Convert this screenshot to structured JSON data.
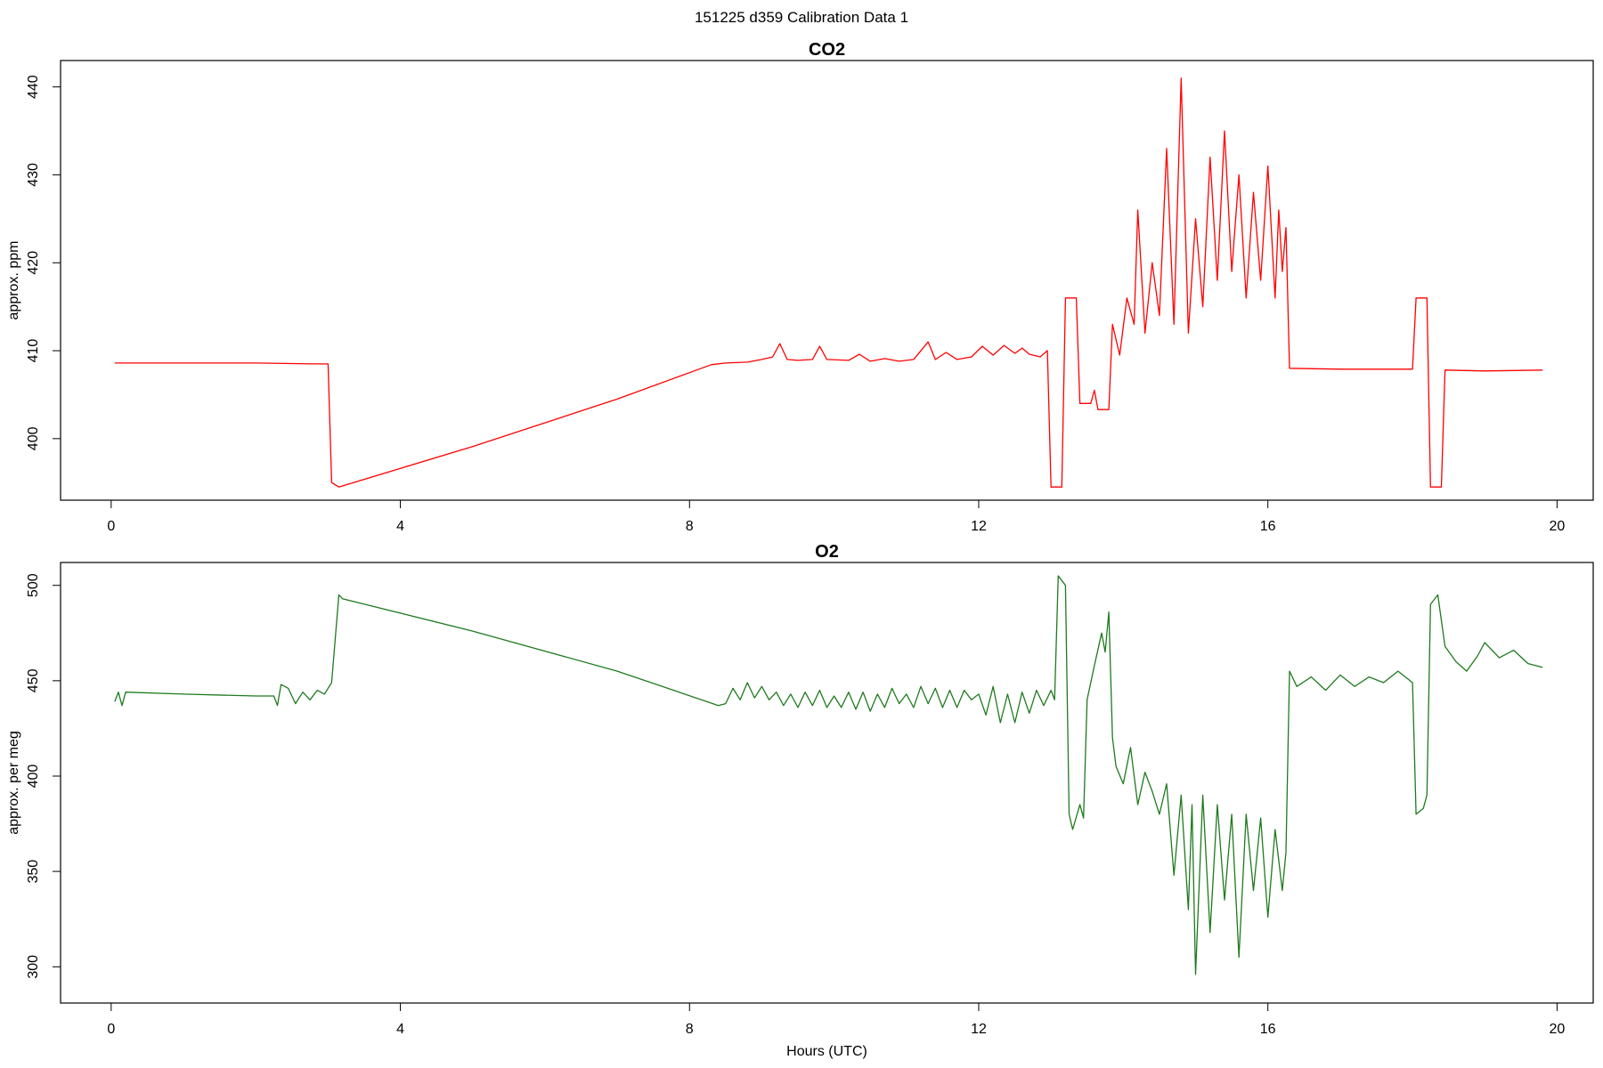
{
  "figure": {
    "title": "151225   d359   Calibration Data 1"
  },
  "chart_data": [
    {
      "type": "line",
      "title": "CO2",
      "xlabel": "",
      "ylabel": "approx. ppm",
      "xlim": [
        -0.7,
        20.5
      ],
      "ylim": [
        393,
        443
      ],
      "xticks": [
        0,
        4,
        8,
        12,
        16,
        20
      ],
      "yticks": [
        400,
        410,
        420,
        430,
        440
      ],
      "grid": false,
      "color": "#ff0000",
      "series": [
        {
          "values": [
            [
              0.05,
              408.6
            ],
            [
              1.0,
              408.6
            ],
            [
              2.0,
              408.6
            ],
            [
              2.8,
              408.5
            ],
            [
              3.0,
              408.5
            ],
            [
              3.05,
              395.0
            ],
            [
              3.15,
              394.5
            ],
            [
              5.0,
              399.1
            ],
            [
              7.0,
              404.5
            ],
            [
              8.3,
              408.4
            ],
            [
              8.5,
              408.6
            ],
            [
              8.8,
              408.7
            ],
            [
              9.0,
              409.0
            ],
            [
              9.15,
              409.3
            ],
            [
              9.25,
              410.8
            ],
            [
              9.35,
              409.0
            ],
            [
              9.5,
              408.9
            ],
            [
              9.7,
              409.0
            ],
            [
              9.8,
              410.5
            ],
            [
              9.9,
              409.0
            ],
            [
              10.2,
              408.9
            ],
            [
              10.35,
              409.6
            ],
            [
              10.5,
              408.8
            ],
            [
              10.7,
              409.1
            ],
            [
              10.9,
              408.8
            ],
            [
              11.1,
              409.0
            ],
            [
              11.3,
              411.0
            ],
            [
              11.4,
              409.0
            ],
            [
              11.55,
              409.8
            ],
            [
              11.7,
              409.0
            ],
            [
              11.9,
              409.3
            ],
            [
              12.05,
              410.5
            ],
            [
              12.2,
              409.5
            ],
            [
              12.35,
              410.6
            ],
            [
              12.5,
              409.7
            ],
            [
              12.6,
              410.3
            ],
            [
              12.7,
              409.6
            ],
            [
              12.85,
              409.3
            ],
            [
              12.95,
              410.0
            ],
            [
              13.0,
              394.5
            ],
            [
              13.15,
              394.5
            ],
            [
              13.2,
              416.0
            ],
            [
              13.35,
              416.0
            ],
            [
              13.4,
              404.0
            ],
            [
              13.55,
              404.0
            ],
            [
              13.6,
              405.5
            ],
            [
              13.65,
              403.3
            ],
            [
              13.8,
              403.3
            ],
            [
              13.85,
              413.0
            ],
            [
              13.95,
              409.5
            ],
            [
              14.05,
              416.0
            ],
            [
              14.15,
              413.0
            ],
            [
              14.2,
              426.0
            ],
            [
              14.3,
              412.0
            ],
            [
              14.4,
              420.0
            ],
            [
              14.5,
              414.0
            ],
            [
              14.6,
              433.0
            ],
            [
              14.7,
              413.0
            ],
            [
              14.8,
              441.0
            ],
            [
              14.9,
              412.0
            ],
            [
              15.0,
              425.0
            ],
            [
              15.1,
              415.0
            ],
            [
              15.2,
              432.0
            ],
            [
              15.3,
              418.0
            ],
            [
              15.4,
              435.0
            ],
            [
              15.5,
              419.0
            ],
            [
              15.6,
              430.0
            ],
            [
              15.7,
              416.0
            ],
            [
              15.8,
              428.0
            ],
            [
              15.9,
              418.0
            ],
            [
              16.0,
              431.0
            ],
            [
              16.1,
              416.0
            ],
            [
              16.15,
              426.0
            ],
            [
              16.2,
              419.0
            ],
            [
              16.25,
              424.0
            ],
            [
              16.3,
              408.0
            ],
            [
              17.0,
              407.9
            ],
            [
              18.0,
              407.9
            ],
            [
              18.05,
              416.0
            ],
            [
              18.2,
              416.0
            ],
            [
              18.25,
              394.5
            ],
            [
              18.4,
              394.5
            ],
            [
              18.45,
              407.8
            ],
            [
              19.0,
              407.7
            ],
            [
              19.8,
              407.8
            ]
          ]
        }
      ]
    },
    {
      "type": "line",
      "title": "O2",
      "xlabel": "Hours (UTC)",
      "ylabel": "approx. per meg",
      "xlim": [
        -0.7,
        20.5
      ],
      "ylim": [
        281,
        512
      ],
      "xticks": [
        0,
        4,
        8,
        12,
        16,
        20
      ],
      "yticks": [
        300,
        350,
        400,
        450,
        500
      ],
      "grid": false,
      "color": "#1e7a1e",
      "series": [
        {
          "values": [
            [
              0.05,
              439
            ],
            [
              0.1,
              444
            ],
            [
              0.15,
              437
            ],
            [
              0.2,
              444
            ],
            [
              1.0,
              443
            ],
            [
              2.0,
              442
            ],
            [
              2.25,
              442
            ],
            [
              2.3,
              437
            ],
            [
              2.35,
              448
            ],
            [
              2.45,
              446
            ],
            [
              2.55,
              438
            ],
            [
              2.65,
              444
            ],
            [
              2.75,
              440
            ],
            [
              2.85,
              445
            ],
            [
              2.95,
              443
            ],
            [
              3.05,
              449
            ],
            [
              3.15,
              495
            ],
            [
              3.2,
              493
            ],
            [
              5.0,
              476
            ],
            [
              7.0,
              455
            ],
            [
              8.4,
              437
            ],
            [
              8.5,
              438
            ],
            [
              8.6,
              446
            ],
            [
              8.7,
              440
            ],
            [
              8.8,
              449
            ],
            [
              8.9,
              441
            ],
            [
              9.0,
              447
            ],
            [
              9.1,
              440
            ],
            [
              9.2,
              444
            ],
            [
              9.3,
              437
            ],
            [
              9.4,
              443
            ],
            [
              9.5,
              436
            ],
            [
              9.6,
              444
            ],
            [
              9.7,
              437
            ],
            [
              9.8,
              445
            ],
            [
              9.9,
              436
            ],
            [
              10.0,
              442
            ],
            [
              10.1,
              436
            ],
            [
              10.2,
              444
            ],
            [
              10.3,
              435
            ],
            [
              10.4,
              444
            ],
            [
              10.5,
              434
            ],
            [
              10.6,
              443
            ],
            [
              10.7,
              436
            ],
            [
              10.8,
              446
            ],
            [
              10.9,
              438
            ],
            [
              11.0,
              443
            ],
            [
              11.1,
              436
            ],
            [
              11.2,
              447
            ],
            [
              11.3,
              438
            ],
            [
              11.4,
              446
            ],
            [
              11.5,
              436
            ],
            [
              11.6,
              445
            ],
            [
              11.7,
              436
            ],
            [
              11.8,
              445
            ],
            [
              11.9,
              440
            ],
            [
              12.0,
              443
            ],
            [
              12.1,
              432
            ],
            [
              12.2,
              447
            ],
            [
              12.3,
              428
            ],
            [
              12.4,
              443
            ],
            [
              12.5,
              428
            ],
            [
              12.6,
              444
            ],
            [
              12.7,
              433
            ],
            [
              12.8,
              445
            ],
            [
              12.9,
              437
            ],
            [
              13.0,
              445
            ],
            [
              13.05,
              440
            ],
            [
              13.1,
              505
            ],
            [
              13.2,
              500
            ],
            [
              13.25,
              380
            ],
            [
              13.3,
              372
            ],
            [
              13.4,
              385
            ],
            [
              13.45,
              378
            ],
            [
              13.5,
              440
            ],
            [
              13.6,
              458
            ],
            [
              13.7,
              475
            ],
            [
              13.75,
              465
            ],
            [
              13.8,
              486
            ],
            [
              13.85,
              420
            ],
            [
              13.9,
              405
            ],
            [
              14.0,
              396
            ],
            [
              14.1,
              415
            ],
            [
              14.2,
              385
            ],
            [
              14.3,
              402
            ],
            [
              14.4,
              392
            ],
            [
              14.5,
              380
            ],
            [
              14.6,
              396
            ],
            [
              14.7,
              348
            ],
            [
              14.8,
              390
            ],
            [
              14.9,
              330
            ],
            [
              14.95,
              385
            ],
            [
              15.0,
              296
            ],
            [
              15.1,
              390
            ],
            [
              15.2,
              318
            ],
            [
              15.3,
              385
            ],
            [
              15.4,
              335
            ],
            [
              15.5,
              380
            ],
            [
              15.6,
              305
            ],
            [
              15.7,
              380
            ],
            [
              15.8,
              340
            ],
            [
              15.9,
              378
            ],
            [
              16.0,
              326
            ],
            [
              16.1,
              372
            ],
            [
              16.2,
              340
            ],
            [
              16.25,
              360
            ],
            [
              16.3,
              455
            ],
            [
              16.4,
              447
            ],
            [
              16.6,
              452
            ],
            [
              16.8,
              445
            ],
            [
              17.0,
              453
            ],
            [
              17.2,
              447
            ],
            [
              17.4,
              452
            ],
            [
              17.6,
              449
            ],
            [
              17.8,
              455
            ],
            [
              18.0,
              449
            ],
            [
              18.05,
              380
            ],
            [
              18.15,
              383
            ],
            [
              18.2,
              390
            ],
            [
              18.25,
              490
            ],
            [
              18.35,
              495
            ],
            [
              18.45,
              468
            ],
            [
              18.6,
              460
            ],
            [
              18.75,
              455
            ],
            [
              18.9,
              463
            ],
            [
              19.0,
              470
            ],
            [
              19.2,
              462
            ],
            [
              19.4,
              466
            ],
            [
              19.6,
              459
            ],
            [
              19.8,
              457
            ]
          ]
        }
      ]
    }
  ]
}
